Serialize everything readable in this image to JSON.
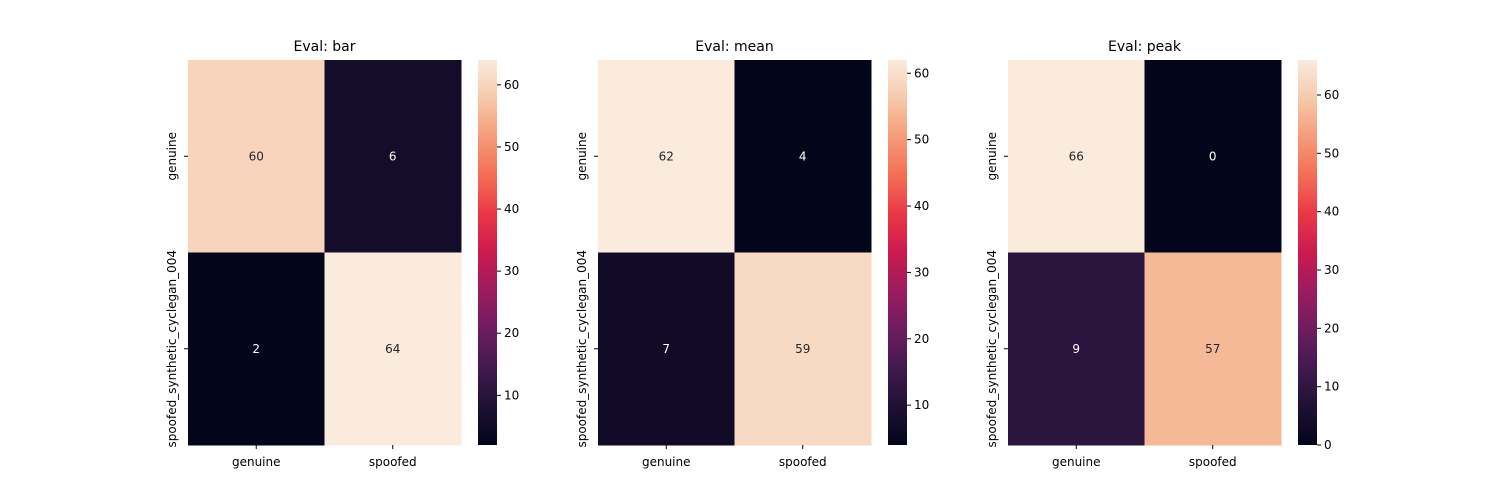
{
  "chart_data": [
    {
      "type": "heatmap",
      "title": "Eval: bar",
      "rows": [
        "genuine",
        "spoofed_synthetic_cyclegan_004"
      ],
      "cols": [
        "genuine",
        "spoofed"
      ],
      "values": [
        [
          60,
          6
        ],
        [
          2,
          64
        ]
      ],
      "colorbar": {
        "range": [
          2,
          64
        ],
        "ticks": [
          10,
          20,
          30,
          40,
          50,
          60
        ],
        "colormap": "rocket"
      }
    },
    {
      "type": "heatmap",
      "title": "Eval: mean",
      "rows": [
        "genuine",
        "spoofed_synthetic_cyclegan_004"
      ],
      "cols": [
        "genuine",
        "spoofed"
      ],
      "values": [
        [
          62,
          4
        ],
        [
          7,
          59
        ]
      ],
      "colorbar": {
        "range": [
          4,
          62
        ],
        "ticks": [
          10,
          20,
          30,
          40,
          50,
          60
        ],
        "colormap": "rocket"
      }
    },
    {
      "type": "heatmap",
      "title": "Eval: peak",
      "rows": [
        "genuine",
        "spoofed_synthetic_cyclegan_004"
      ],
      "cols": [
        "genuine",
        "spoofed"
      ],
      "values": [
        [
          66,
          0
        ],
        [
          9,
          57
        ]
      ],
      "colorbar": {
        "range": [
          0,
          66
        ],
        "ticks": [
          0,
          10,
          20,
          30,
          40,
          50,
          60
        ],
        "colormap": "rocket"
      }
    }
  ]
}
